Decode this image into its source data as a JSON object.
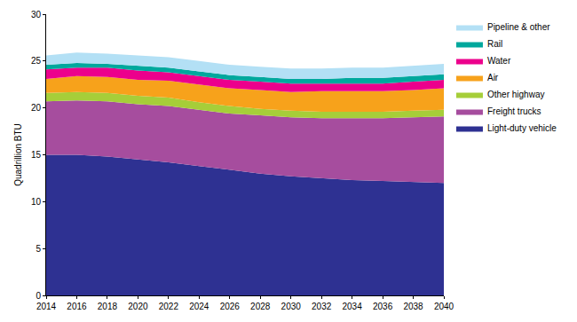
{
  "chart_data": {
    "type": "area",
    "stacked": true,
    "y_label": "Quadrillion BTU",
    "x": [
      2014,
      2016,
      2018,
      2020,
      2022,
      2024,
      2026,
      2028,
      2030,
      2032,
      2034,
      2036,
      2038,
      2040
    ],
    "series": [
      {
        "name": "Light-duty vehicle",
        "color": "#2e3192",
        "values": [
          15.0,
          15.0,
          14.8,
          14.5,
          14.2,
          13.8,
          13.4,
          13.0,
          12.7,
          12.5,
          12.3,
          12.2,
          12.1,
          12.0
        ]
      },
      {
        "name": "Freight trucks",
        "color": "#a64d9e",
        "values": [
          5.7,
          5.8,
          5.9,
          5.9,
          6.0,
          6.0,
          6.0,
          6.2,
          6.3,
          6.4,
          6.6,
          6.7,
          6.9,
          7.1
        ]
      },
      {
        "name": "Other highway",
        "color": "#a6ce39",
        "values": [
          0.9,
          0.9,
          0.9,
          0.9,
          0.9,
          0.8,
          0.8,
          0.7,
          0.7,
          0.7,
          0.7,
          0.7,
          0.7,
          0.7
        ]
      },
      {
        "name": "Air",
        "color": "#f7a21b",
        "values": [
          1.5,
          1.7,
          1.7,
          1.7,
          1.8,
          1.9,
          1.9,
          2.0,
          2.0,
          2.2,
          2.2,
          2.2,
          2.2,
          2.3
        ]
      },
      {
        "name": "Water",
        "color": "#ec008c",
        "values": [
          1.0,
          0.9,
          1.0,
          1.0,
          0.9,
          0.9,
          0.9,
          0.9,
          0.9,
          0.8,
          0.8,
          0.8,
          0.9,
          0.9
        ]
      },
      {
        "name": "Rail",
        "color": "#00a89d",
        "values": [
          0.5,
          0.5,
          0.4,
          0.5,
          0.5,
          0.5,
          0.5,
          0.5,
          0.5,
          0.5,
          0.6,
          0.6,
          0.6,
          0.6
        ]
      },
      {
        "name": "Pipeline & other",
        "color": "#b3e0f5",
        "values": [
          1.0,
          1.1,
          1.1,
          1.1,
          1.1,
          1.1,
          1.1,
          1.1,
          1.1,
          1.1,
          1.1,
          1.1,
          1.1,
          1.1
        ]
      }
    ],
    "xlim": [
      2014,
      2040
    ],
    "xticks": [
      2014,
      2016,
      2018,
      2020,
      2022,
      2024,
      2026,
      2028,
      2030,
      2032,
      2034,
      2036,
      2038,
      2040
    ],
    "ylim": [
      0,
      30
    ],
    "yticks": [
      0,
      5,
      10,
      15,
      20,
      25,
      30
    ],
    "grid": false,
    "legend": "right"
  }
}
